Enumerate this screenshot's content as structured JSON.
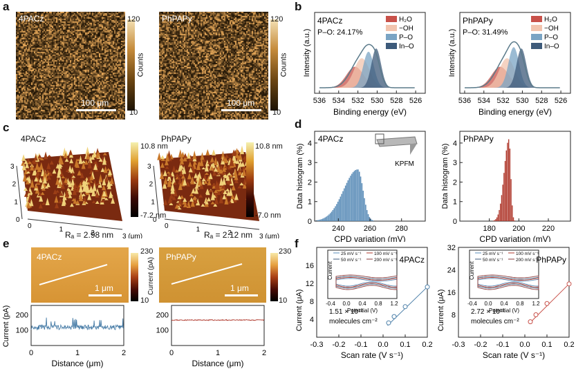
{
  "panels": {
    "a": {
      "label": "a",
      "left": {
        "sample": "4PACz",
        "scale": "100 μm"
      },
      "right": {
        "sample": "PhPAPy",
        "scale": "100 μm"
      },
      "colorbar": {
        "max": "120",
        "min": "10",
        "title": "Counts"
      }
    },
    "b": {
      "label": "b",
      "left": {
        "sample": "4PACz",
        "po": "P–O: 24.17%"
      },
      "right": {
        "sample": "PhPAPy",
        "po": "P–O: 31.49%"
      },
      "legend": [
        "H₂O",
        "−OH",
        "P–O",
        "In–O"
      ],
      "legend_colors": [
        "#c8514a",
        "#f2c4ae",
        "#7aa4c4",
        "#3d5a7a"
      ],
      "xlabel": "Binding energy (eV)",
      "ylabel": "Intensity (a.u.)",
      "xticks": [
        "536",
        "534",
        "532",
        "530",
        "528",
        "526"
      ]
    },
    "c": {
      "label": "c",
      "left": {
        "sample": "4PACz",
        "ra": "Rₐ = 2.98 nm",
        "max": "10.8 nm",
        "min": "-7.2 nm"
      },
      "right": {
        "sample": "PhPAPy",
        "ra": "Rₐ = 2.12 nm",
        "max": "10.8 nm",
        "min": "-7.0 nm"
      },
      "axis_ticks_x": [
        "0",
        "1",
        "2",
        "3 (μm)"
      ],
      "axis_ticks_y": [
        "0",
        "1",
        "2",
        "3"
      ]
    },
    "d": {
      "label": "d",
      "left": {
        "sample": "4PACz",
        "xticks": [
          "240",
          "260",
          "280"
        ],
        "color": "#5b8db8"
      },
      "right": {
        "sample": "PhPAPy",
        "xticks": [
          "180",
          "200",
          "220"
        ],
        "color": "#b03a2e"
      },
      "xlabel": "CPD variation (mV)",
      "ylabel": "Data histogram (%)",
      "yticks": [
        "0",
        "1",
        "2",
        "3",
        "4"
      ],
      "kpfm": "KPFM"
    },
    "e": {
      "label": "e",
      "left": {
        "sample": "4PACz",
        "scale": "1 μm",
        "line_color": "#4a7ea8"
      },
      "right": {
        "sample": "PhPAPy",
        "scale": "1 μm",
        "line_color": "#b03a2e"
      },
      "colorbar": {
        "max": "230",
        "min": "10",
        "title": "Current (pA)"
      },
      "xlabel": "Distance (μm)",
      "ylabel": "Current (pA)",
      "xticks": [
        "0",
        "1",
        "2"
      ],
      "yticks": [
        "100",
        "200"
      ]
    },
    "f": {
      "label": "f",
      "left": {
        "sample": "4PACz",
        "density": "1.51 × 10¹³",
        "unit": "molecules cm⁻²",
        "yticks": [
          "12",
          "8",
          "4",
          "16"
        ],
        "color": "#4a7ea8"
      },
      "right": {
        "sample": "PhPAPy",
        "density": "2.72 × 10¹³",
        "unit": "molecules cm⁻²",
        "yticks": [
          "8",
          "16",
          "24",
          "32"
        ],
        "color": "#c8514a"
      },
      "xlabel": "Scan rate (V s⁻¹)",
      "ylabel": "Current (μA)",
      "xticks": [
        "-0.3",
        "-0.2",
        "-0.1",
        "0.0",
        "0.1",
        "0.2"
      ],
      "inset": {
        "xlabel": "Potential (V)",
        "ylabel": "Current",
        "xticks": [
          "-0.4",
          "0.0",
          "0.4",
          "0.8",
          "1.2"
        ],
        "legend": [
          "25 mV s⁻¹",
          "100 mV s⁻¹",
          "50 mV s⁻¹",
          "200 mV s⁻¹"
        ]
      }
    }
  }
}
